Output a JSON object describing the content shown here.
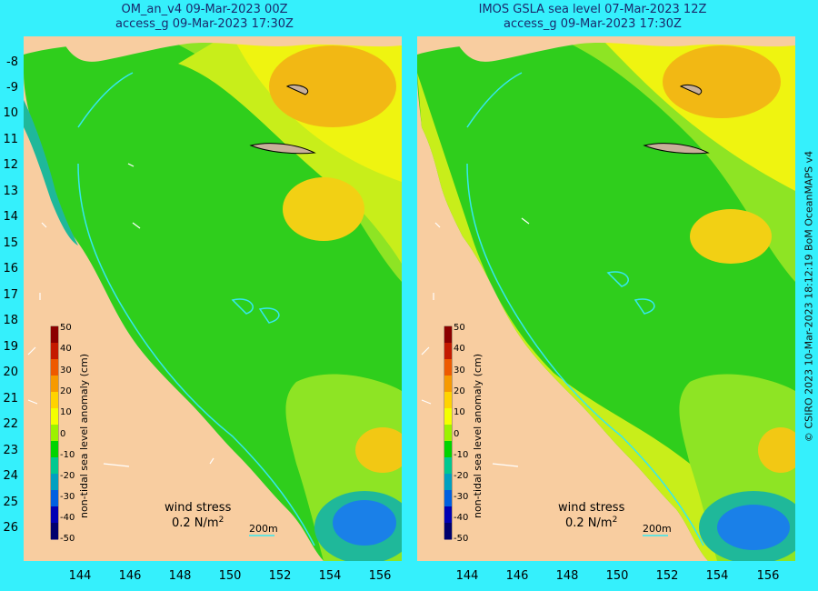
{
  "left_panel": {
    "title_line1": "OM_an_v4  09-Mar-2023 00Z",
    "title_line2": "access_g 09-Mar-2023 17:30Z"
  },
  "right_panel": {
    "title_line1": "IMOS GSLA sea level  07-Mar-2023 12Z",
    "title_line2": "access_g 09-Mar-2023 17:30Z"
  },
  "lat_ticks": [
    "-8",
    "-9",
    "10",
    "11",
    "12",
    "13",
    "14",
    "15",
    "16",
    "17",
    "18",
    "19",
    "20",
    "21",
    "22",
    "23",
    "24",
    "25",
    "26"
  ],
  "lon_ticks": [
    "144",
    "146",
    "148",
    "150",
    "152",
    "154",
    "156"
  ],
  "colorbar": {
    "label": "non-tidal sea level anomaly (cm)",
    "ticks": [
      "50",
      "40",
      "30",
      "20",
      "10",
      "0",
      "-10",
      "-20",
      "-30",
      "-40",
      "-50"
    ],
    "colors": [
      "#8b0000",
      "#c41a00",
      "#ee5a00",
      "#f79a00",
      "#ffd300",
      "#f4ff00",
      "#9cf200",
      "#00d400",
      "#00c890",
      "#00a0c0",
      "#0060e0",
      "#0000b4",
      "#00006e"
    ]
  },
  "wind_stress": {
    "label": "wind stress",
    "value": "0.2 N/m",
    "exponent": "2"
  },
  "scale_bar": {
    "label": "200m"
  },
  "credit": "© CSIRO 2023   10-Mar-2023 18:12:19 BoM OceanMAPS v4",
  "colors": {
    "land": "#f8cda0",
    "ocean_green": "#2fce1c",
    "light_green": "#8ee424",
    "yellow": "#eff410",
    "orange": "#f2b814",
    "teal": "#1fb89a",
    "blue": "#1a80e8",
    "reef_outline": "#35e8f0",
    "page_bg": "#35f0fc"
  }
}
